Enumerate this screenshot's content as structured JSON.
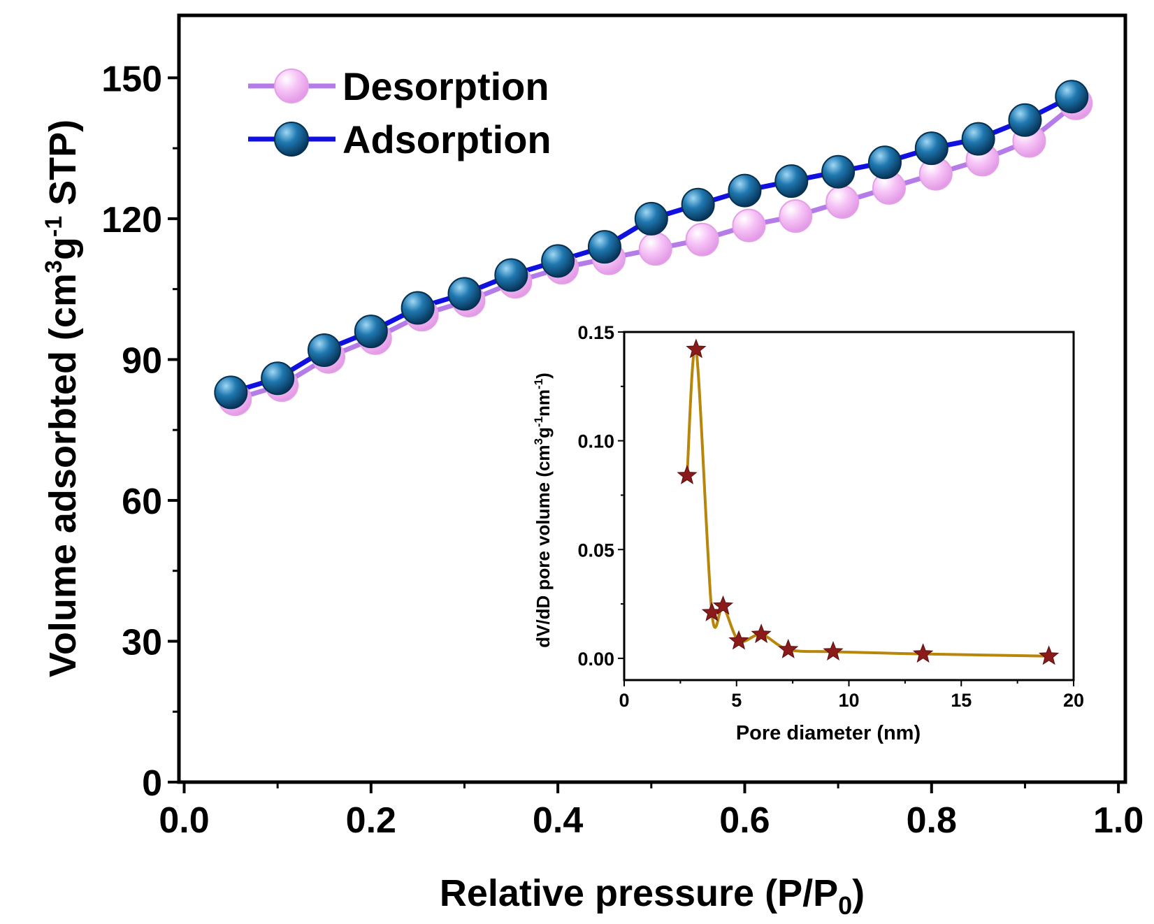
{
  "chart_data": [
    {
      "type": "line",
      "xlabel_main": "Relative pressure (P/P",
      "xlabel_sub": "0",
      "xlabel_close": ")",
      "ylabel_main": "Volume adsorbted (cm",
      "ylabel_sup1": "3",
      "ylabel_mid": "g",
      "ylabel_sup2": "-1",
      "ylabel_end": " STP)",
      "xlim": [
        0.0,
        1.0
      ],
      "ylim": [
        0,
        160
      ],
      "xticks": [
        "0.0",
        "0.2",
        "0.4",
        "0.6",
        "0.8",
        "1.0"
      ],
      "yticks": [
        "0",
        "30",
        "60",
        "90",
        "120",
        "150"
      ],
      "legend_position": "top-left",
      "series": [
        {
          "name": "Desorption",
          "color": "#b57be8",
          "marker_color": "#f3b9f3",
          "x": [
            0.05,
            0.1,
            0.15,
            0.2,
            0.25,
            0.3,
            0.35,
            0.4,
            0.45,
            0.5,
            0.55,
            0.6,
            0.65,
            0.7,
            0.75,
            0.8,
            0.85,
            0.9,
            0.95
          ],
          "y": [
            82,
            85,
            91,
            95,
            100,
            103,
            107,
            110,
            112,
            114,
            116,
            119,
            121,
            124,
            127,
            130,
            133,
            137,
            145
          ]
        },
        {
          "name": "Adsorption",
          "color": "#1010e0",
          "marker_color": "#1a6fa0",
          "x": [
            0.05,
            0.1,
            0.15,
            0.2,
            0.25,
            0.3,
            0.35,
            0.4,
            0.45,
            0.5,
            0.55,
            0.6,
            0.65,
            0.7,
            0.75,
            0.8,
            0.85,
            0.9,
            0.95
          ],
          "y": [
            83,
            86,
            92,
            96,
            101,
            104,
            108,
            111,
            114,
            120,
            123,
            126,
            128,
            130,
            132,
            135,
            137,
            141,
            146
          ]
        }
      ]
    },
    {
      "type": "line",
      "inset": true,
      "xlabel": "Pore diameter (nm)",
      "ylabel_main": "dV/dD pore volume (cm",
      "ylabel_sup1": "3",
      "ylabel_mid": "g",
      "ylabel_sup2": "-1",
      "ylabel_mid2": "nm",
      "ylabel_sup3": "-1",
      "ylabel_end": ")",
      "xlim": [
        0,
        20
      ],
      "ylim": [
        -0.01,
        0.15
      ],
      "xticks": [
        "0",
        "5",
        "10",
        "15",
        "20"
      ],
      "yticks": [
        "0.00",
        "0.05",
        "0.10",
        "0.15"
      ],
      "series": [
        {
          "color": "#b8860b",
          "marker_color": "#8b1a1a",
          "x": [
            2.8,
            3.2,
            3.9,
            4.4,
            5.1,
            6.1,
            7.3,
            9.3,
            13.3,
            18.9
          ],
          "y": [
            0.084,
            0.142,
            0.021,
            0.024,
            0.008,
            0.011,
            0.004,
            0.003,
            0.002,
            0.001
          ]
        }
      ]
    }
  ]
}
